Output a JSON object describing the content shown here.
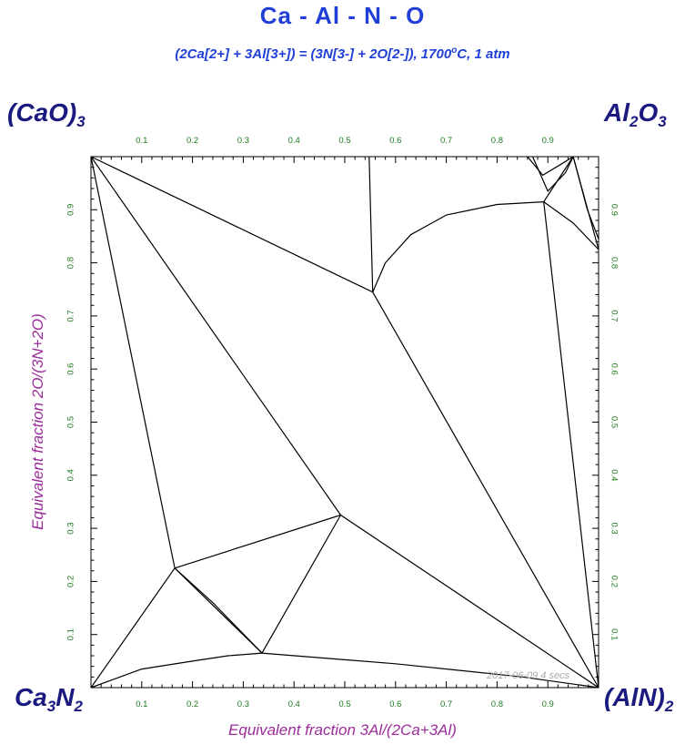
{
  "header": {
    "title": "Ca - Al - N - O",
    "subtitle_main": "(2Ca[2+] + 3Al[3+]) = (3N[3-] + 2O[2-]), 1700",
    "subtitle_deg": "o",
    "subtitle_tail": "C, 1 atm"
  },
  "corners": {
    "top_left": {
      "base": "(CaO)",
      "sub": "3"
    },
    "top_right": {
      "base1": "Al",
      "sub1": "2",
      "base2": "O",
      "sub2": "3"
    },
    "bottom_left": {
      "base1": "Ca",
      "sub1": "3",
      "base2": "N",
      "sub2": "2"
    },
    "bottom_right": {
      "base": "(AlN)",
      "sub": "2"
    }
  },
  "stamp": "2017-06-09 4 secs",
  "colors": {
    "title": "#1f3fd6",
    "corner_labels": "#1a1a80",
    "axis_labels": "#9b2c9b",
    "tick_labels": "#1e7a1e",
    "lines": "#000000"
  },
  "chart_data": {
    "type": "phase-diagram",
    "title": "Ca - Al - N - O",
    "xlabel": "Equivalent fraction  3Al/(2Ca+3Al)",
    "ylabel": "Equivalent fraction  2O/(3N+2O)",
    "xlim": [
      0,
      1
    ],
    "ylim": [
      0,
      1
    ],
    "x_ticks": [
      0.1,
      0.2,
      0.3,
      0.4,
      0.5,
      0.6,
      0.7,
      0.8,
      0.9
    ],
    "y_ticks": [
      0.1,
      0.2,
      0.3,
      0.4,
      0.5,
      0.6,
      0.7,
      0.8,
      0.9
    ],
    "x_tick_labels": [
      "0.1",
      "0.2",
      "0.3",
      "0.4",
      "0.5",
      "0.6",
      "0.7",
      "0.8",
      "0.9"
    ],
    "y_tick_labels": [
      "0.1",
      "0.2",
      "0.3",
      "0.4",
      "0.5",
      "0.6",
      "0.7",
      "0.8",
      "0.9"
    ],
    "boundaries": [
      {
        "points": [
          [
            0,
            1
          ],
          [
            0.555,
            0.745
          ]
        ]
      },
      {
        "points": [
          [
            0,
            1
          ],
          [
            0.165,
            0.225
          ]
        ]
      },
      {
        "points": [
          [
            0,
            1
          ],
          [
            0.492,
            0.325
          ]
        ]
      },
      {
        "points": [
          [
            0,
            0
          ],
          [
            0.165,
            0.225
          ]
        ]
      },
      {
        "points": [
          [
            0,
            0
          ],
          [
            0.1,
            0.035
          ],
          [
            0.2,
            0.05
          ],
          [
            0.27,
            0.06
          ],
          [
            0.337,
            0.065
          ]
        ]
      },
      {
        "points": [
          [
            0.165,
            0.225
          ],
          [
            0.337,
            0.065
          ]
        ]
      },
      {
        "points": [
          [
            0.165,
            0.225
          ],
          [
            0.24,
            0.16
          ],
          [
            0.337,
            0.065
          ]
        ]
      },
      {
        "points": [
          [
            0.165,
            0.225
          ],
          [
            0.492,
            0.325
          ]
        ]
      },
      {
        "points": [
          [
            0.492,
            0.325
          ],
          [
            0.337,
            0.065
          ]
        ]
      },
      {
        "points": [
          [
            0.492,
            0.325
          ],
          [
            1,
            0
          ]
        ]
      },
      {
        "points": [
          [
            0.337,
            0.065
          ],
          [
            0.6,
            0.045
          ],
          [
            0.85,
            0.02
          ],
          [
            1,
            0
          ]
        ]
      },
      {
        "points": [
          [
            0.555,
            0.745
          ],
          [
            1,
            0
          ]
        ]
      },
      {
        "points": [
          [
            0.555,
            0.745
          ],
          [
            0.548,
            1
          ]
        ]
      },
      {
        "points": [
          [
            0.555,
            0.745
          ],
          [
            0.58,
            0.8
          ],
          [
            0.63,
            0.853
          ],
          [
            0.7,
            0.89
          ],
          [
            0.8,
            0.91
          ],
          [
            0.892,
            0.915
          ]
        ]
      },
      {
        "points": [
          [
            0.892,
            0.915
          ],
          [
            1,
            0
          ]
        ]
      },
      {
        "points": [
          [
            0.892,
            0.915
          ],
          [
            0.95,
            1
          ]
        ]
      },
      {
        "points": [
          [
            0.892,
            0.915
          ],
          [
            0.95,
            0.875
          ],
          [
            1,
            0.825
          ]
        ]
      },
      {
        "points": [
          [
            0.86,
            1
          ],
          [
            0.89,
            0.965
          ],
          [
            0.925,
            0.985
          ],
          [
            0.95,
            1
          ]
        ]
      },
      {
        "points": [
          [
            0.87,
            1
          ],
          [
            0.9,
            0.935
          ],
          [
            0.935,
            0.97
          ],
          [
            0.95,
            1
          ]
        ]
      },
      {
        "points": [
          [
            0.95,
            1
          ],
          [
            0.978,
            0.9
          ],
          [
            1,
            0.845
          ]
        ]
      },
      {
        "points": [
          [
            0.95,
            1
          ],
          [
            0.97,
            0.93
          ],
          [
            1,
            0.825
          ]
        ]
      }
    ]
  }
}
